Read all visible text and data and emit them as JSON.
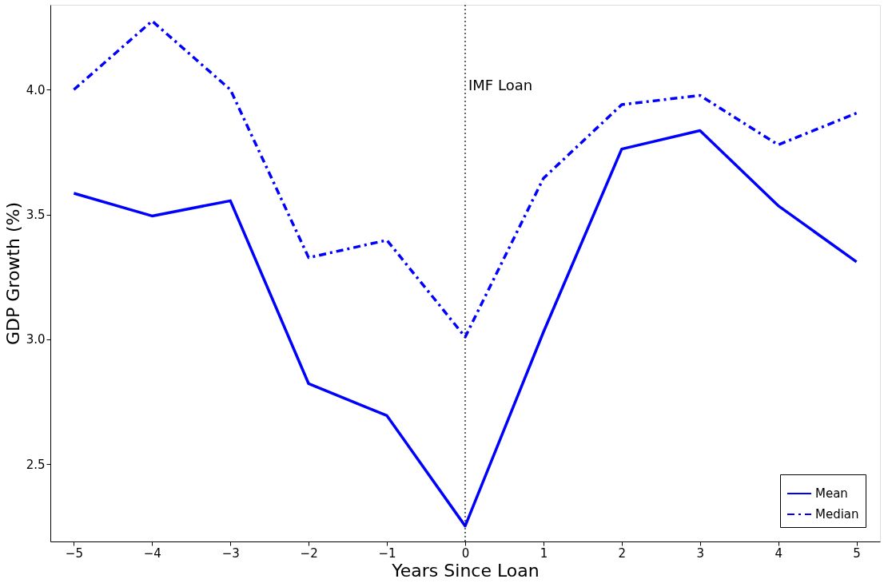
{
  "chart_data": {
    "type": "line",
    "xlabel": "Years Since Loan",
    "ylabel": "GDP Growth (%)",
    "x": [
      -5,
      -4,
      -3,
      -2,
      -1,
      0,
      1,
      2,
      3,
      4,
      5
    ],
    "series": [
      {
        "name": "Mean",
        "color": "#0000ff",
        "line_style": "solid",
        "values": [
          3.585,
          3.494,
          3.555,
          2.822,
          2.694,
          2.252,
          3.029,
          3.762,
          3.836,
          3.535,
          3.31
        ]
      },
      {
        "name": "Median",
        "color": "#0000ff",
        "line_style": "dashdot",
        "values": [
          4.0,
          4.275,
          4.0,
          3.327,
          3.397,
          3.009,
          3.645,
          3.94,
          3.977,
          3.779,
          3.906
        ]
      }
    ],
    "xlim": [
      -5.3,
      5.3
    ],
    "ylim": [
      2.19,
      4.34
    ],
    "xticks": [
      {
        "value": -5,
        "label": "−5"
      },
      {
        "value": -4,
        "label": "−4"
      },
      {
        "value": -3,
        "label": "−3"
      },
      {
        "value": -2,
        "label": "−2"
      },
      {
        "value": -1,
        "label": "−1"
      },
      0,
      1,
      2,
      3,
      4,
      5
    ],
    "yticks": [
      2.5,
      {
        "value": 3,
        "label": "3.0"
      },
      3.5,
      {
        "value": 4,
        "label": "4.0"
      }
    ],
    "ref_lines": [
      {
        "axis": "x",
        "value": 0,
        "label": "IMF Loan",
        "color": "#000000",
        "line_style": "dotted"
      }
    ],
    "grid": false,
    "legend": "bottom right"
  }
}
